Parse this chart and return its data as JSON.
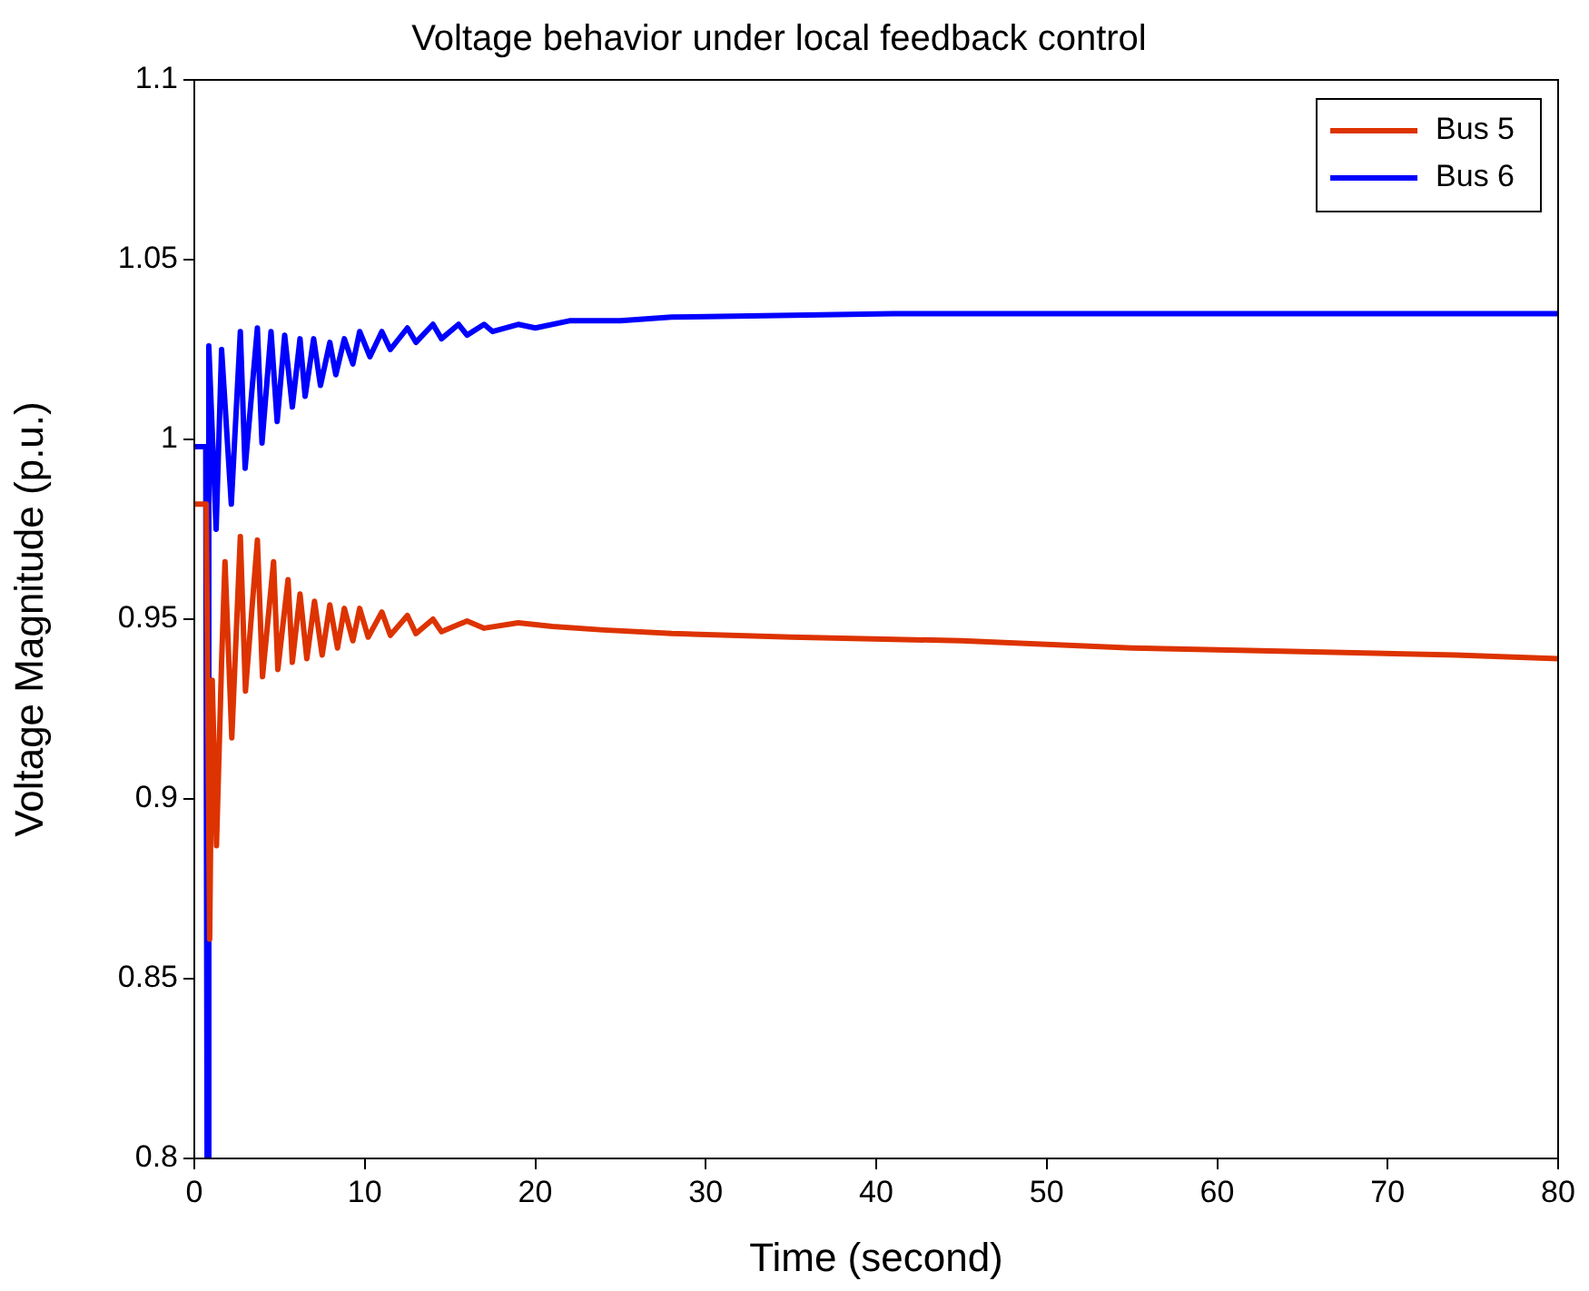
{
  "chart_data": {
    "type": "line",
    "title": "Voltage behavior under local feedback control",
    "xlabel": "Time (second)",
    "ylabel": "Voltage Magnitude (p.u.)",
    "xlim": [
      0,
      80
    ],
    "xticks": [
      0,
      10,
      20,
      30,
      40,
      50,
      60,
      70,
      80
    ],
    "ylim": [
      0.8,
      1.1
    ],
    "yticks": [
      0.8,
      0.85,
      0.9,
      0.95,
      1,
      1.05,
      1.1
    ],
    "legend": "top right",
    "marker": "none",
    "line_style": "solid",
    "series": [
      {
        "name": "Bus 5",
        "color": "#dd3300",
        "x": [
          0,
          0.7,
          0.9,
          1.05,
          1.3,
          1.6,
          1.8,
          2.2,
          2.7,
          3.0,
          3.7,
          4.0,
          4.65,
          4.9,
          5.5,
          5.75,
          6.2,
          6.6,
          7.05,
          7.5,
          7.95,
          8.4,
          8.8,
          9.3,
          9.7,
          10.2,
          11,
          11.5,
          12.5,
          13,
          14,
          14.5,
          16,
          17,
          19,
          21,
          24,
          28,
          35,
          45,
          55,
          65,
          74,
          80
        ],
        "values": [
          0.982,
          0.982,
          0.861,
          0.933,
          0.887,
          0.938,
          0.966,
          0.917,
          0.973,
          0.93,
          0.972,
          0.934,
          0.966,
          0.936,
          0.961,
          0.938,
          0.957,
          0.939,
          0.955,
          0.94,
          0.954,
          0.942,
          0.953,
          0.944,
          0.953,
          0.945,
          0.952,
          0.9455,
          0.951,
          0.946,
          0.95,
          0.9465,
          0.9495,
          0.9475,
          0.949,
          0.948,
          0.947,
          0.946,
          0.945,
          0.944,
          0.942,
          0.941,
          0.94,
          0.939
        ]
      },
      {
        "name": "Bus 6",
        "color": "#0000ff",
        "x": [
          0,
          0.67,
          0.75,
          0.85,
          1.28,
          1.6,
          2.17,
          2.7,
          2.98,
          3.7,
          3.97,
          4.5,
          4.86,
          5.3,
          5.75,
          6.2,
          6.5,
          7.0,
          7.4,
          7.95,
          8.3,
          8.8,
          9.3,
          9.7,
          10.3,
          11,
          11.5,
          12.5,
          13,
          14,
          14.5,
          15.5,
          16,
          17,
          17.5,
          19,
          20,
          22,
          25,
          28,
          41,
          80
        ],
        "values": [
          0.998,
          0.998,
          0.8,
          1.026,
          0.975,
          1.025,
          0.982,
          1.03,
          0.992,
          1.031,
          0.999,
          1.03,
          1.005,
          1.029,
          1.009,
          1.028,
          1.012,
          1.028,
          1.015,
          1.027,
          1.018,
          1.028,
          1.021,
          1.03,
          1.023,
          1.03,
          1.025,
          1.031,
          1.027,
          1.032,
          1.028,
          1.032,
          1.029,
          1.032,
          1.03,
          1.032,
          1.031,
          1.033,
          1.033,
          1.034,
          1.035,
          1.035
        ]
      }
    ]
  }
}
